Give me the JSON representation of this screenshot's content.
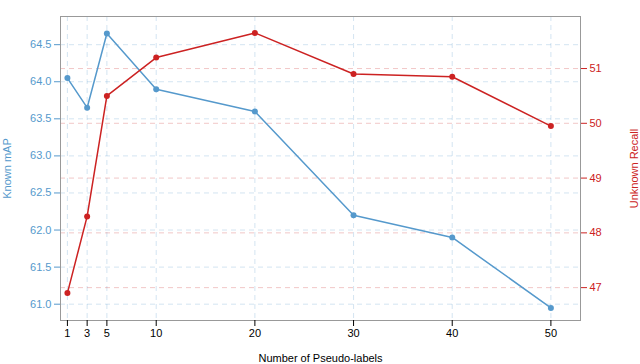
{
  "chart_data": {
    "type": "line",
    "xlabel": "Number of Pseudo-labels",
    "ylabel": "Known mAP",
    "y2label": "Unknown Recall",
    "x": [
      1,
      3,
      5,
      10,
      20,
      30,
      40,
      50
    ],
    "series": [
      {
        "color": "#5599cc",
        "marker": "circle",
        "axis": "y",
        "values": [
          64.05,
          63.65,
          64.65,
          63.9,
          63.6,
          62.2,
          61.9,
          60.95
        ]
      },
      {
        "color": "#cc2222",
        "marker": "circle",
        "axis": "y2",
        "values": [
          46.9,
          48.3,
          50.5,
          51.2,
          51.65,
          50.9,
          50.85,
          49.95
        ]
      }
    ],
    "xlim": [
      0.3,
      53
    ],
    "xticks": [
      1,
      3,
      5,
      10,
      20,
      30,
      40,
      50
    ],
    "ylim": [
      60.78,
      64.88
    ],
    "yticks": [
      {
        "value": 61,
        "label": "61.0"
      },
      {
        "value": 61.5,
        "label": "61.5"
      },
      {
        "value": 62,
        "label": "62.0"
      },
      {
        "value": 62.5,
        "label": "62.5"
      },
      {
        "value": 63,
        "label": "63.0"
      },
      {
        "value": 63.5,
        "label": "63.5"
      },
      {
        "value": 64,
        "label": "64.0"
      },
      {
        "value": 64.5,
        "label": "64.5"
      }
    ],
    "y2lim": [
      46.4,
      51.95
    ],
    "y2ticks": [
      47,
      48,
      49,
      50,
      51
    ],
    "grid": true
  }
}
